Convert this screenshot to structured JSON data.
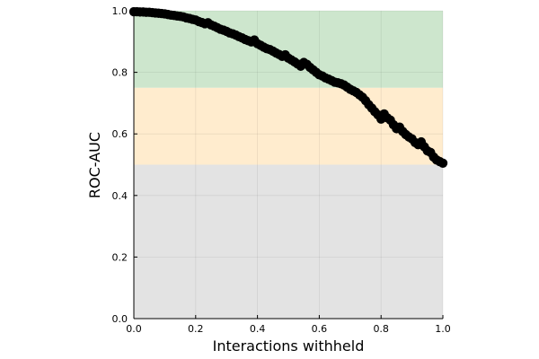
{
  "chart_data": {
    "type": "scatter",
    "title": "",
    "xlabel": "Interactions withheld",
    "ylabel": "ROC-AUC",
    "xlim": [
      0,
      1
    ],
    "ylim": [
      0,
      1
    ],
    "x_ticks": [
      "0.0",
      "0.2",
      "0.4",
      "0.6",
      "0.8",
      "1.0"
    ],
    "y_ticks": [
      "0.0",
      "0.2",
      "0.4",
      "0.6",
      "0.8",
      "1.0"
    ],
    "grid": true,
    "legend": "none",
    "bands": [
      {
        "from": 0.0,
        "to": 0.5,
        "color": "#e3e3e3"
      },
      {
        "from": 0.5,
        "to": 0.75,
        "color": "#ffecce"
      },
      {
        "from": 0.75,
        "to": 1.0,
        "color": "#cde6cd"
      }
    ],
    "marker_color": "#000000",
    "points": [
      [
        0.0,
        0.997
      ],
      [
        0.01,
        0.997
      ],
      [
        0.02,
        0.996
      ],
      [
        0.03,
        0.996
      ],
      [
        0.04,
        0.995
      ],
      [
        0.05,
        0.995
      ],
      [
        0.06,
        0.994
      ],
      [
        0.07,
        0.993
      ],
      [
        0.08,
        0.992
      ],
      [
        0.09,
        0.991
      ],
      [
        0.1,
        0.99
      ],
      [
        0.11,
        0.988
      ],
      [
        0.12,
        0.986
      ],
      [
        0.13,
        0.985
      ],
      [
        0.14,
        0.983
      ],
      [
        0.15,
        0.982
      ],
      [
        0.16,
        0.98
      ],
      [
        0.17,
        0.977
      ],
      [
        0.18,
        0.975
      ],
      [
        0.19,
        0.972
      ],
      [
        0.2,
        0.97
      ],
      [
        0.21,
        0.965
      ],
      [
        0.22,
        0.962
      ],
      [
        0.23,
        0.958
      ],
      [
        0.24,
        0.961
      ],
      [
        0.25,
        0.954
      ],
      [
        0.26,
        0.95
      ],
      [
        0.27,
        0.945
      ],
      [
        0.28,
        0.94
      ],
      [
        0.29,
        0.937
      ],
      [
        0.3,
        0.933
      ],
      [
        0.31,
        0.928
      ],
      [
        0.32,
        0.925
      ],
      [
        0.33,
        0.921
      ],
      [
        0.34,
        0.916
      ],
      [
        0.35,
        0.912
      ],
      [
        0.36,
        0.907
      ],
      [
        0.37,
        0.903
      ],
      [
        0.38,
        0.899
      ],
      [
        0.39,
        0.905
      ],
      [
        0.4,
        0.893
      ],
      [
        0.41,
        0.888
      ],
      [
        0.42,
        0.882
      ],
      [
        0.43,
        0.877
      ],
      [
        0.44,
        0.874
      ],
      [
        0.45,
        0.869
      ],
      [
        0.46,
        0.863
      ],
      [
        0.47,
        0.858
      ],
      [
        0.48,
        0.852
      ],
      [
        0.49,
        0.857
      ],
      [
        0.5,
        0.846
      ],
      [
        0.51,
        0.84
      ],
      [
        0.52,
        0.834
      ],
      [
        0.53,
        0.827
      ],
      [
        0.54,
        0.82
      ],
      [
        0.55,
        0.832
      ],
      [
        0.56,
        0.826
      ],
      [
        0.57,
        0.816
      ],
      [
        0.58,
        0.808
      ],
      [
        0.59,
        0.8
      ],
      [
        0.6,
        0.792
      ],
      [
        0.61,
        0.788
      ],
      [
        0.62,
        0.782
      ],
      [
        0.63,
        0.778
      ],
      [
        0.64,
        0.773
      ],
      [
        0.65,
        0.768
      ],
      [
        0.66,
        0.766
      ],
      [
        0.67,
        0.763
      ],
      [
        0.68,
        0.759
      ],
      [
        0.69,
        0.752
      ],
      [
        0.7,
        0.745
      ],
      [
        0.71,
        0.74
      ],
      [
        0.72,
        0.735
      ],
      [
        0.73,
        0.727
      ],
      [
        0.74,
        0.719
      ],
      [
        0.75,
        0.708
      ],
      [
        0.76,
        0.695
      ],
      [
        0.77,
        0.684
      ],
      [
        0.78,
        0.672
      ],
      [
        0.79,
        0.662
      ],
      [
        0.8,
        0.648
      ],
      [
        0.81,
        0.665
      ],
      [
        0.82,
        0.652
      ],
      [
        0.83,
        0.645
      ],
      [
        0.84,
        0.63
      ],
      [
        0.85,
        0.617
      ],
      [
        0.86,
        0.622
      ],
      [
        0.87,
        0.608
      ],
      [
        0.88,
        0.598
      ],
      [
        0.89,
        0.59
      ],
      [
        0.9,
        0.584
      ],
      [
        0.91,
        0.572
      ],
      [
        0.92,
        0.565
      ],
      [
        0.93,
        0.574
      ],
      [
        0.94,
        0.558
      ],
      [
        0.95,
        0.545
      ],
      [
        0.96,
        0.54
      ],
      [
        0.97,
        0.525
      ],
      [
        0.98,
        0.515
      ],
      [
        0.99,
        0.51
      ],
      [
        1.0,
        0.505
      ]
    ]
  }
}
